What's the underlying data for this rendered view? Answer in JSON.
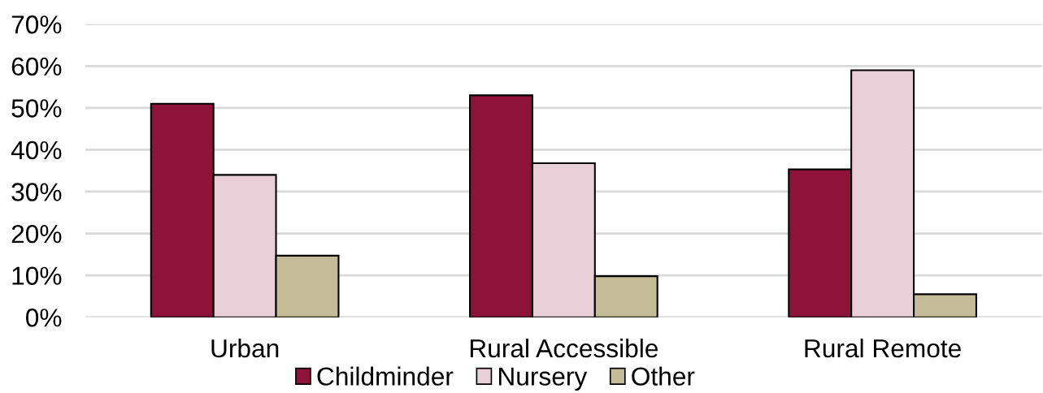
{
  "chart_data": {
    "type": "bar",
    "categories": [
      "Urban",
      "Rural Accessible",
      "Rural Remote"
    ],
    "series": [
      {
        "name": "Childminder",
        "color": "#8e133b",
        "values": [
          51,
          53,
          35.3
        ]
      },
      {
        "name": "Nursery",
        "color": "#e8cfd8",
        "values": [
          34,
          36.8,
          59
        ]
      },
      {
        "name": "Other",
        "color": "#c4bc96",
        "values": [
          14.7,
          9.8,
          5.5
        ]
      }
    ],
    "ylim": [
      0,
      70
    ],
    "yticks": [
      {
        "value": 0,
        "label": "0%"
      },
      {
        "value": 10,
        "label": "10%"
      },
      {
        "value": 20,
        "label": "20%"
      },
      {
        "value": 30,
        "label": "30%"
      },
      {
        "value": 40,
        "label": "40%"
      },
      {
        "value": 50,
        "label": "50%"
      },
      {
        "value": 60,
        "label": "60%"
      },
      {
        "value": 70,
        "label": "70%"
      }
    ],
    "grid": "y",
    "legend": "bottom"
  }
}
